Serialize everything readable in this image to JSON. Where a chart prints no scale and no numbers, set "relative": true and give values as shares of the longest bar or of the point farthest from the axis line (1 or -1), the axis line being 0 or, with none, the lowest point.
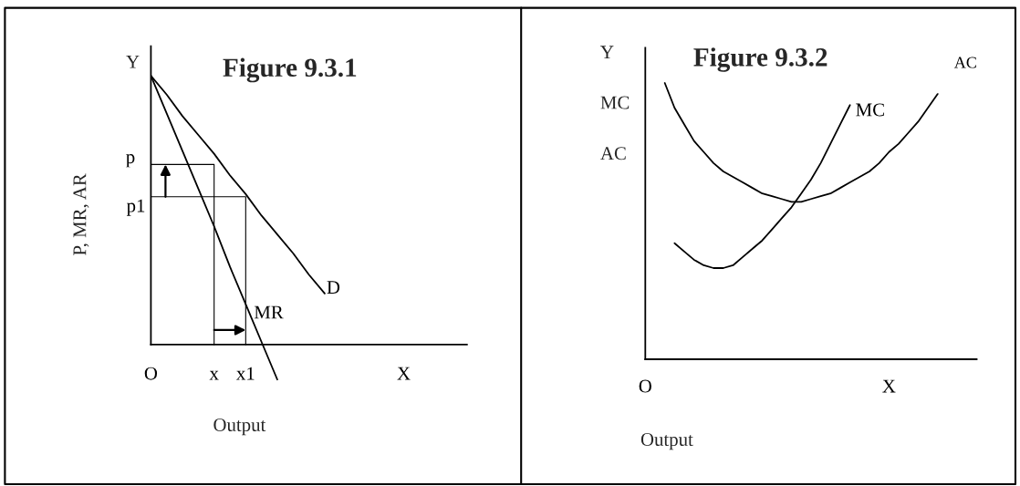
{
  "chart_data": [
    {
      "type": "line",
      "title": "Figure 9.3.1",
      "xlabel": "Output",
      "ylabel": "P, MR, AR",
      "relative": true,
      "annotations": [
        "Y"
      ],
      "categories": [
        "O",
        null,
        null,
        null,
        "x",
        null,
        "x1",
        null,
        null,
        null,
        null,
        null,
        null,
        null,
        null,
        null,
        "X",
        null,
        null,
        null,
        null
      ],
      "series": [
        {
          "name": "D",
          "color": "#000000",
          "values": [
            1,
            0.93,
            0.85,
            0.78,
            0.71,
            0.63,
            0.56,
            0.48,
            0.41,
            0.34,
            0.26,
            0.19,
            null,
            null,
            null,
            null,
            null,
            null,
            null,
            null,
            null
          ]
        },
        {
          "name": "MR",
          "color": "#000000",
          "values": [
            1,
            0.86,
            0.72,
            0.58,
            0.44,
            0.29,
            0.15,
            0.01,
            -0.13,
            null,
            null,
            null,
            null,
            null,
            null,
            null,
            null,
            null,
            null,
            null,
            null
          ]
        },
        {
          "name": "p",
          "color": "#000000",
          "x": [
            "O",
            "x",
            "x"
          ],
          "values": [
            0.67,
            0.67,
            0
          ]
        },
        {
          "name": "p1",
          "color": "#000000",
          "x": [
            "O",
            "x1",
            "x1"
          ],
          "values": [
            0.55,
            0.55,
            0
          ]
        }
      ]
    },
    {
      "type": "line",
      "title": "Figure 9.3.2",
      "xlabel": "Output",
      "relative": true,
      "annotations": [
        "Y",
        "MC",
        "AC"
      ],
      "categories": [
        "O",
        null,
        null,
        null,
        null,
        null,
        null,
        null,
        null,
        null,
        null,
        null,
        null,
        null,
        null,
        null,
        null,
        null,
        null,
        null,
        null,
        null,
        null,
        null,
        null,
        "X",
        null,
        null,
        null,
        null,
        null,
        null,
        null,
        null,
        null
      ],
      "series": [
        {
          "name": "MC",
          "color": "#000000",
          "values": [
            null,
            null,
            null,
            0.42,
            0.39,
            0.36,
            0.34,
            0.33,
            0.33,
            0.34,
            0.37,
            0.4,
            0.43,
            0.47,
            0.51,
            0.55,
            0.6,
            0.65,
            0.71,
            0.78,
            0.85,
            0.92,
            null,
            null,
            null,
            null,
            null,
            null,
            null,
            null,
            null,
            null,
            null,
            null,
            null
          ]
        },
        {
          "name": "AC",
          "color": "#000000",
          "values": [
            null,
            null,
            1.0,
            0.91,
            0.85,
            0.79,
            0.75,
            0.71,
            0.68,
            0.66,
            0.64,
            0.62,
            0.6,
            0.59,
            0.58,
            0.57,
            0.57,
            0.58,
            0.59,
            0.6,
            0.62,
            0.64,
            0.66,
            0.68,
            0.71,
            0.75,
            0.78,
            0.82,
            0.86,
            0.91,
            0.96,
            null,
            null,
            null,
            null
          ]
        }
      ]
    }
  ]
}
